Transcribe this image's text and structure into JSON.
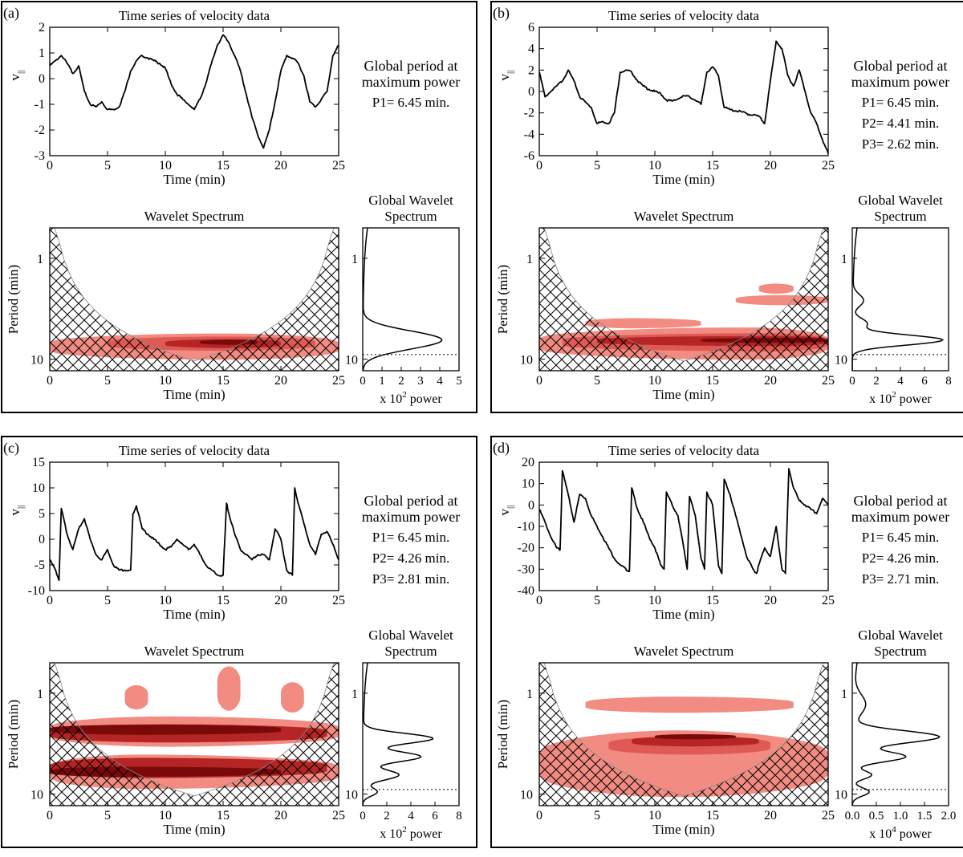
{
  "figure": {
    "panels_text": {
      "timeseries_title": "Time series of velocity data",
      "time_label": "Time (min)",
      "vel_label": "v",
      "vel_sub": "||",
      "global_title_1": "Global period at",
      "global_title_2": "maximum power",
      "wavelet_title": "Wavelet Spectrum",
      "gws_title_1": "Global Wavelet",
      "gws_title_2": "Spectrum",
      "period_label": "Period (min)",
      "power_label_pre": "x 10",
      "power_label_post": " power"
    },
    "colors": {
      "line": "#000000",
      "c1": "#f28c82",
      "c2": "#e05a55",
      "c3": "#b52525",
      "c4": "#7a0a0a",
      "hatch": "#000000"
    }
  },
  "chart_data": [
    {
      "id": "a",
      "label": "(a)",
      "type": "line",
      "title": "Time series of velocity data",
      "xlabel": "Time (min)",
      "ylabel": "v||",
      "xlim": [
        0,
        25
      ],
      "ylim": [
        -3,
        2
      ],
      "xticks": [
        0,
        5,
        10,
        15,
        20,
        25
      ],
      "yticks": [
        -3,
        -2,
        -1,
        0,
        1,
        2
      ],
      "x": [
        0,
        0.5,
        1,
        1.5,
        2,
        2.5,
        3,
        3.5,
        4,
        4.5,
        5,
        5.5,
        6,
        6.5,
        7,
        7.5,
        8,
        8.5,
        9,
        9.5,
        10,
        10.5,
        11,
        11.5,
        12,
        12.5,
        13,
        13.5,
        14,
        14.5,
        15,
        15.5,
        16,
        16.5,
        17,
        17.5,
        18,
        18.5,
        19,
        19.5,
        20,
        20.5,
        21,
        21.5,
        22,
        22.5,
        23,
        23.5,
        24,
        24.5,
        25
      ],
      "y": [
        0.5,
        0.7,
        0.9,
        0.6,
        0.2,
        0.5,
        -0.5,
        -1.0,
        -1.1,
        -0.9,
        -1.2,
        -1.2,
        -1.1,
        -0.5,
        0.3,
        0.7,
        0.9,
        0.8,
        0.7,
        0.6,
        0.4,
        -0.2,
        -0.6,
        -0.8,
        -1.0,
        -1.2,
        -0.8,
        -0.2,
        0.6,
        1.3,
        1.7,
        1.4,
        0.9,
        0.3,
        -0.6,
        -1.5,
        -2.2,
        -2.7,
        -2.0,
        -0.9,
        0.3,
        0.9,
        0.8,
        0.6,
        0.1,
        -0.9,
        -1.1,
        -0.8,
        -0.5,
        0.9,
        1.3
      ],
      "periods": [
        "P1=  6.45 min."
      ],
      "wavelet": {
        "title": "Wavelet Spectrum",
        "ylabel": "Period (min)",
        "period_range": [
          0.5,
          13
        ],
        "yticks": [
          1,
          10
        ],
        "blobs": [
          {
            "t0": 0,
            "t1": 25,
            "tpk": 15,
            "p": 7.5,
            "w": 0.13,
            "level": 1
          },
          {
            "t0": 5,
            "t1": 23,
            "tpk": 15,
            "p": 7.0,
            "w": 0.07,
            "level": 2
          },
          {
            "t0": 10,
            "t1": 20,
            "tpk": 16,
            "p": 7.0,
            "w": 0.045,
            "level": 3
          },
          {
            "t0": 13,
            "t1": 18,
            "tpk": 16,
            "p": 6.8,
            "w": 0.025,
            "level": 4
          }
        ]
      },
      "global_wavelet": {
        "title": "Global Wavelet Spectrum",
        "xlabel_exp": "2",
        "xlim": [
          0,
          5
        ],
        "xticks": [
          0,
          1,
          2,
          3,
          4,
          5
        ],
        "peaks": [
          {
            "p": 6.45,
            "amp": 4.1,
            "w": 0.09
          }
        ],
        "significance_period": 9.0
      }
    },
    {
      "id": "b",
      "label": "(b)",
      "type": "line",
      "title": "Time series of velocity data",
      "xlabel": "Time (min)",
      "ylabel": "v||",
      "xlim": [
        0,
        25
      ],
      "ylim": [
        -6,
        6
      ],
      "xticks": [
        0,
        5,
        10,
        15,
        20,
        25
      ],
      "yticks": [
        -6,
        -4,
        -2,
        0,
        2,
        4,
        6
      ],
      "x": [
        0,
        0.5,
        1,
        1.5,
        2,
        2.5,
        3,
        3.5,
        4,
        4.5,
        5,
        5.5,
        6,
        6.5,
        7,
        7.5,
        8,
        8.5,
        9,
        9.5,
        10,
        10.5,
        11,
        11.5,
        12,
        12.5,
        13,
        13.5,
        14,
        14.5,
        15,
        15.5,
        16,
        16.5,
        17,
        17.5,
        18,
        18.5,
        19,
        19.5,
        20,
        20.5,
        21,
        21.5,
        22,
        22.5,
        23,
        23.5,
        24,
        24.5,
        25
      ],
      "y": [
        1.8,
        -0.5,
        0.0,
        0.5,
        1.0,
        2.0,
        1.0,
        -0.5,
        -1.0,
        -1.5,
        -3.0,
        -2.8,
        -3.0,
        -2.0,
        1.8,
        2.0,
        1.8,
        1.0,
        0.5,
        0.2,
        0.0,
        -0.2,
        -0.8,
        -0.9,
        -0.7,
        -0.4,
        -0.5,
        -0.8,
        -1.2,
        1.8,
        2.3,
        1.5,
        -1.5,
        -1.7,
        -1.8,
        -1.9,
        -2.1,
        -2.2,
        -2.3,
        -3.0,
        1.0,
        4.7,
        4.0,
        1.5,
        0.5,
        2.0,
        0.0,
        -2.0,
        -3.0,
        -4.5,
        -5.8
      ],
      "periods": [
        "P1=  6.45 min.",
        "P2=  4.41 min.",
        "P3=  2.62 min."
      ],
      "wavelet": {
        "title": "Wavelet Spectrum",
        "ylabel": "Period (min)",
        "period_range": [
          0.5,
          13
        ],
        "yticks": [
          1,
          10
        ],
        "blobs": [
          {
            "t0": 0,
            "t1": 25,
            "tpk": 18,
            "p": 7.0,
            "w": 0.16,
            "level": 1
          },
          {
            "t0": 2,
            "t1": 25,
            "tpk": 20,
            "p": 6.8,
            "w": 0.09,
            "level": 2
          },
          {
            "t0": 5,
            "t1": 25,
            "tpk": 21,
            "p": 6.6,
            "w": 0.05,
            "level": 3
          },
          {
            "t0": 14,
            "t1": 25,
            "tpk": 21,
            "p": 6.5,
            "w": 0.025,
            "level": 4
          },
          {
            "t0": 4,
            "t1": 14,
            "tpk": 8,
            "p": 4.4,
            "w": 0.05,
            "level": 1
          },
          {
            "t0": 17,
            "t1": 25,
            "tpk": 21,
            "p": 2.6,
            "w": 0.05,
            "level": 1
          },
          {
            "t0": 19,
            "t1": 22,
            "tpk": 20.5,
            "p": 2.0,
            "w": 0.05,
            "level": 1
          }
        ]
      },
      "global_wavelet": {
        "title": "Global Wavelet Spectrum",
        "xlabel_exp": "2",
        "xlim": [
          0,
          8
        ],
        "xticks": [
          0,
          2,
          4,
          6,
          8
        ],
        "peaks": [
          {
            "p": 6.45,
            "amp": 7.5,
            "w": 0.05
          },
          {
            "p": 4.41,
            "amp": 1.2,
            "w": 0.05
          },
          {
            "p": 2.62,
            "amp": 0.9,
            "w": 0.06
          }
        ],
        "significance_period": 9.0
      }
    },
    {
      "id": "c",
      "label": "(c)",
      "type": "line",
      "title": "Time series of velocity data",
      "xlabel": "Time (min)",
      "ylabel": "v||",
      "xlim": [
        0,
        25
      ],
      "ylim": [
        -10,
        15
      ],
      "xticks": [
        0,
        5,
        10,
        15,
        20,
        25
      ],
      "yticks": [
        -10,
        -5,
        0,
        5,
        10,
        15
      ],
      "x": [
        0,
        0.5,
        0.8,
        1.0,
        1.5,
        2,
        2.5,
        3,
        3.5,
        4,
        4.5,
        5,
        5.5,
        6,
        6.5,
        7.0,
        7.2,
        7.5,
        8,
        8.5,
        9,
        9.5,
        10,
        10.5,
        11,
        11.5,
        12,
        12.5,
        13,
        13.5,
        14,
        14.5,
        15.0,
        15.3,
        15.5,
        16,
        16.5,
        17,
        17.5,
        18,
        18.5,
        19,
        19.5,
        20,
        20.5,
        21.0,
        21.2,
        21.5,
        22,
        22.5,
        23,
        23.5,
        24,
        24.5,
        25
      ],
      "y": [
        -4,
        -6,
        -8,
        6,
        1,
        -2,
        2,
        4,
        0,
        -3,
        -4,
        -2,
        -5,
        -6,
        -6,
        -6,
        5,
        6.5,
        2,
        1,
        0,
        -1,
        -2,
        -1.5,
        0,
        -1,
        -2,
        -1,
        -3,
        -5,
        -6,
        -7,
        -7,
        7,
        5,
        1,
        -2,
        -3,
        -4,
        -3,
        -3,
        -4,
        2,
        0,
        -6,
        -7,
        10,
        7,
        3,
        -1,
        -3,
        1,
        1.5,
        -1,
        -4
      ],
      "periods": [
        "P1=  6.45 min.",
        "P2=  4.26 min.",
        "P3=  2.81 min."
      ],
      "wavelet": {
        "title": "Wavelet Spectrum",
        "ylabel": "Period (min)",
        "period_range": [
          0.5,
          13
        ],
        "yticks": [
          1,
          10
        ],
        "blobs": [
          {
            "t0": 0,
            "t1": 25,
            "tpk": 8,
            "p": 6.0,
            "w": 0.17,
            "level": 1
          },
          {
            "t0": 0,
            "t1": 25,
            "tpk": 10,
            "p": 2.4,
            "w": 0.15,
            "level": 1
          },
          {
            "t0": 0,
            "t1": 24,
            "tpk": 8,
            "p": 5.5,
            "w": 0.1,
            "level": 3
          },
          {
            "t0": 0,
            "t1": 24,
            "tpk": 10,
            "p": 2.5,
            "w": 0.09,
            "level": 3
          },
          {
            "t0": 0,
            "t1": 20,
            "tpk": 6,
            "p": 6.0,
            "w": 0.05,
            "level": 4
          },
          {
            "t0": 0,
            "t1": 20,
            "tpk": 8,
            "p": 2.3,
            "w": 0.05,
            "level": 4
          },
          {
            "t0": 6.5,
            "t1": 8.5,
            "tpk": 7.5,
            "p": 1.1,
            "w": 0.12,
            "level": 1
          },
          {
            "t0": 14.5,
            "t1": 16.5,
            "tpk": 15.5,
            "p": 0.9,
            "w": 0.22,
            "level": 1
          },
          {
            "t0": 20,
            "t1": 22,
            "tpk": 21,
            "p": 1.1,
            "w": 0.15,
            "level": 1
          }
        ]
      },
      "global_wavelet": {
        "title": "Global Wavelet Spectrum",
        "xlabel_exp": "2",
        "xlim": [
          0,
          8
        ],
        "xticks": [
          0,
          2,
          4,
          6,
          8
        ],
        "peaks": [
          {
            "p": 6.45,
            "amp": 3.0,
            "w": 0.05
          },
          {
            "p": 4.26,
            "amp": 4.8,
            "w": 0.05
          },
          {
            "p": 2.81,
            "amp": 5.8,
            "w": 0.05
          },
          {
            "p": 9.5,
            "amp": 1.2,
            "w": 0.04
          }
        ],
        "significance_period": 9.0
      }
    },
    {
      "id": "d",
      "label": "(d)",
      "type": "line",
      "title": "Time series of velocity data",
      "xlabel": "Time (min)",
      "ylabel": "v||",
      "xlim": [
        0,
        25
      ],
      "ylim": [
        -40,
        20
      ],
      "xticks": [
        0,
        5,
        10,
        15,
        20,
        25
      ],
      "yticks": [
        -40,
        -30,
        -20,
        -10,
        0,
        10,
        20
      ],
      "x": [
        0,
        0.5,
        1,
        1.5,
        1.8,
        2.0,
        2.5,
        3,
        3.5,
        4,
        4.5,
        5,
        5.5,
        6,
        6.5,
        7,
        7.5,
        7.8,
        8.0,
        8.5,
        9,
        9.5,
        10,
        10.5,
        10.8,
        11.0,
        11.5,
        12,
        12.5,
        12.8,
        13.0,
        13.5,
        14,
        14.3,
        14.5,
        15,
        15.5,
        15.8,
        16.0,
        16.5,
        17,
        17.5,
        18,
        18.5,
        18.8,
        19.0,
        19.5,
        20,
        20.5,
        21,
        21.3,
        21.6,
        22,
        22.5,
        23,
        23.5,
        24,
        24.5,
        25
      ],
      "y": [
        -2,
        -8,
        -15,
        -20,
        -21,
        16,
        5,
        -8,
        5,
        3,
        -5,
        -10,
        -15,
        -20,
        -25,
        -28,
        -30,
        -31,
        8,
        -2,
        -8,
        -15,
        -20,
        -28,
        -30,
        6,
        0,
        -5,
        -20,
        -30,
        4,
        -5,
        -25,
        -30,
        6,
        0,
        -28,
        -32,
        12,
        5,
        -5,
        -15,
        -25,
        -30,
        -32,
        -28,
        -20,
        -24,
        -10,
        -30,
        -32,
        17,
        8,
        2,
        0,
        -2,
        -4,
        3,
        0
      ],
      "periods": [
        "P1=  6.45 min.",
        "P2=  4.26 min.",
        "P3=  2.71 min."
      ],
      "wavelet": {
        "title": "Wavelet Spectrum",
        "ylabel": "Period (min)",
        "period_range": [
          0.5,
          13
        ],
        "yticks": [
          1,
          10
        ],
        "blobs": [
          {
            "t0": 0,
            "t1": 25,
            "tpk": 12,
            "p": 5.0,
            "w": 0.33,
            "level": 1
          },
          {
            "t0": 4,
            "t1": 22,
            "tpk": 12,
            "p": 1.3,
            "w": 0.08,
            "level": 1
          },
          {
            "t0": 6,
            "t1": 20,
            "tpk": 13,
            "p": 3.3,
            "w": 0.09,
            "level": 2
          },
          {
            "t0": 8,
            "t1": 19,
            "tpk": 13,
            "p": 3.0,
            "w": 0.05,
            "level": 3
          },
          {
            "t0": 10,
            "t1": 17,
            "tpk": 13,
            "p": 2.7,
            "w": 0.025,
            "level": 4
          }
        ]
      },
      "global_wavelet": {
        "title": "Global Wavelet Spectrum",
        "xlabel_exp": "4",
        "xlim": [
          0,
          2
        ],
        "xticks": [
          "0.0",
          "0.5",
          "1.0",
          "1.5",
          "2.0"
        ],
        "peaks": [
          {
            "p": 2.71,
            "amp": 1.8,
            "w": 0.06
          },
          {
            "p": 4.26,
            "amp": 1.1,
            "w": 0.05
          },
          {
            "p": 6.45,
            "amp": 0.4,
            "w": 0.04
          },
          {
            "p": 9.5,
            "amp": 0.35,
            "w": 0.04
          },
          {
            "p": 1.3,
            "amp": 0.25,
            "w": 0.1
          }
        ],
        "significance_period": 9.0
      }
    }
  ]
}
